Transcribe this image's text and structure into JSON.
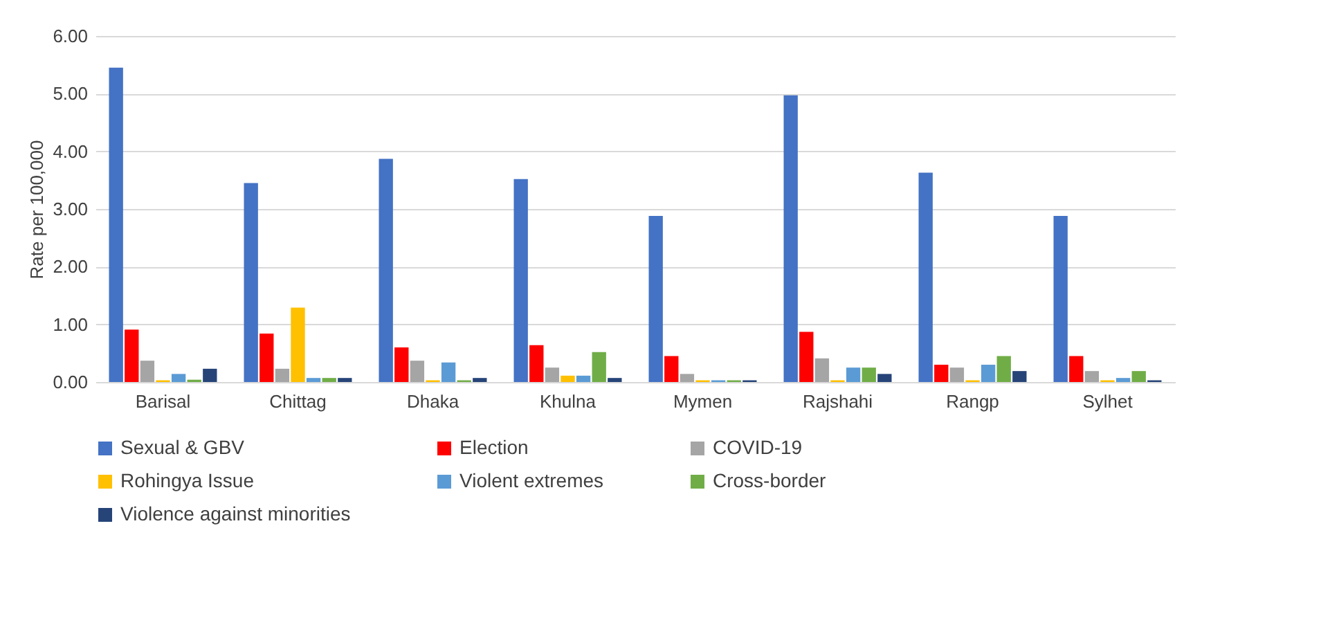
{
  "chart_data": {
    "type": "bar",
    "ylabel": "Rate per 100,000",
    "categories": [
      "Barisal",
      "Chittag",
      "Dhaka",
      "Khulna",
      "Mymen",
      "Rajshahi",
      "Rangp",
      "Sylhet"
    ],
    "series": [
      {
        "name": "Sexual & GBV",
        "color": "#4472c4",
        "values": [
          5.45,
          3.45,
          3.87,
          3.52,
          2.88,
          4.97,
          3.63,
          2.88
        ]
      },
      {
        "name": "Election",
        "color": "#ff0000",
        "values": [
          0.91,
          0.84,
          0.6,
          0.64,
          0.45,
          0.87,
          0.3,
          0.45
        ]
      },
      {
        "name": "COVID-19",
        "color": "#a5a5a5",
        "values": [
          0.37,
          0.23,
          0.37,
          0.25,
          0.14,
          0.41,
          0.25,
          0.19
        ]
      },
      {
        "name": "Rohingya Issue",
        "color": "#ffc000",
        "values": [
          0.03,
          1.29,
          0.03,
          0.11,
          0.03,
          0.03,
          0.03,
          0.03
        ]
      },
      {
        "name": "Violent extremes",
        "color": "#5b9bd5",
        "values": [
          0.14,
          0.07,
          0.34,
          0.11,
          0.03,
          0.25,
          0.3,
          0.07
        ]
      },
      {
        "name": "Cross-border",
        "color": "#70ad47",
        "values": [
          0.04,
          0.07,
          0.03,
          0.52,
          0.03,
          0.25,
          0.45,
          0.19
        ]
      },
      {
        "name": "Violence against minorities",
        "color": "#264478",
        "values": [
          0.23,
          0.07,
          0.07,
          0.07,
          0.03,
          0.14,
          0.19,
          0.03
        ]
      }
    ],
    "ylim": [
      0,
      6
    ],
    "yticks": [
      {
        "value": 0,
        "label": "0.00"
      },
      {
        "value": 1,
        "label": "1.00"
      },
      {
        "value": 2,
        "label": "2.00"
      },
      {
        "value": 3,
        "label": "3.00"
      },
      {
        "value": 4,
        "label": "4.00"
      },
      {
        "value": 5,
        "label": "5.00"
      },
      {
        "value": 6,
        "label": "6.00"
      }
    ],
    "grid": "y",
    "legend": "bottom"
  }
}
